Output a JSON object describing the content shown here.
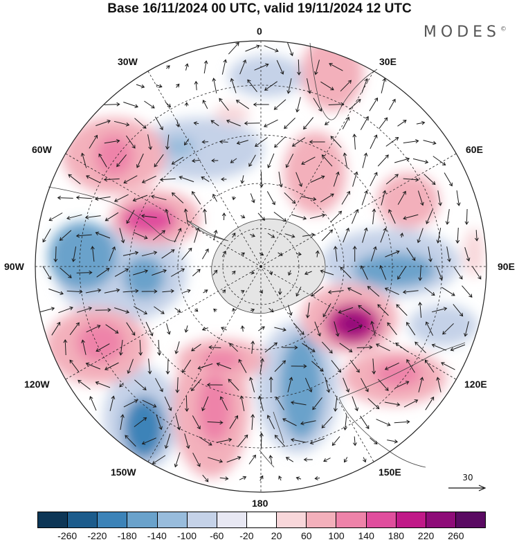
{
  "title": "Base 16/11/2024 00 UTC, valid 19/11/2024 12 UTC",
  "brand": "MODES",
  "brand_mark": "©",
  "longitude_labels": [
    "0",
    "30E",
    "60E",
    "90E",
    "120E",
    "150E",
    "180",
    "150W",
    "120W",
    "90W",
    "60W",
    "30W"
  ],
  "reference_vector": {
    "value": "30"
  },
  "colorbar": {
    "colors": [
      "#0d3656",
      "#1c5c8c",
      "#3c83b8",
      "#6aa2cb",
      "#98bcdc",
      "#c5d2e8",
      "#e8e8f3",
      "#ffffff",
      "#f8d7da",
      "#f3b0bb",
      "#ee83a9",
      "#e04e9d",
      "#c01a88",
      "#8e0c78",
      "#5a0a62"
    ],
    "labels": [
      "-260",
      "-220",
      "-180",
      "-140",
      "-100",
      "-60",
      "-20",
      "20",
      "60",
      "100",
      "140",
      "180",
      "220",
      "260"
    ]
  },
  "colors": {
    "antarctica": "#e5e5e5",
    "grid": "#222222",
    "coast": "#444444"
  }
}
